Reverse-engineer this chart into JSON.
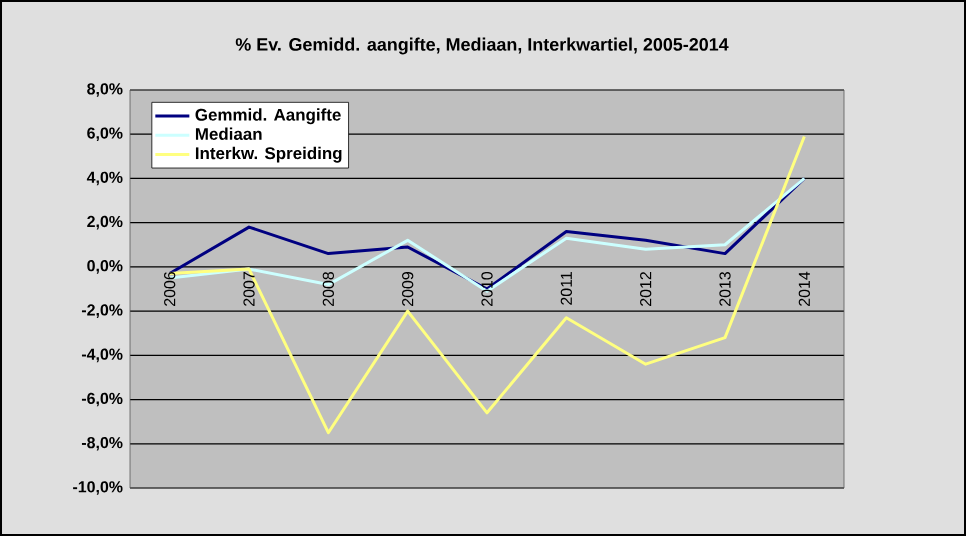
{
  "chart_data": {
    "type": "line",
    "title": "% Ev. Gemidd. aangifte, Mediaan, Interkwartiel, 2005-2014",
    "categories": [
      "2006",
      "2007",
      "2008",
      "2009",
      "2010",
      "2011",
      "2012",
      "2013",
      "2014"
    ],
    "series": [
      {
        "name": "Gemmid. Aangifte",
        "color": "#000080",
        "values": [
          -0.3,
          1.8,
          0.6,
          0.9,
          -1.0,
          1.6,
          1.2,
          0.6,
          4.0
        ]
      },
      {
        "name": "Mediaan",
        "color": "#ccffff",
        "values": [
          -0.5,
          -0.1,
          -0.8,
          1.2,
          -1.1,
          1.3,
          0.8,
          1.0,
          4.0
        ]
      },
      {
        "name": "Interkw. Spreiding",
        "color": "#ffff80",
        "values": [
          -0.3,
          -0.1,
          -7.5,
          -2.0,
          -6.6,
          -2.3,
          -4.4,
          -3.2,
          5.9
        ]
      }
    ],
    "ylim": [
      -10,
      8
    ],
    "yticks": [
      {
        "value": -10,
        "label": "-10,0%"
      },
      {
        "value": -8,
        "label": "-8,0%"
      },
      {
        "value": -6,
        "label": "-6,0%"
      },
      {
        "value": -4,
        "label": "-4,0%"
      },
      {
        "value": -2,
        "label": "-2,0%"
      },
      {
        "value": 0,
        "label": "0,0%"
      },
      {
        "value": 2,
        "label": "2,0%"
      },
      {
        "value": 4,
        "label": "4,0%"
      },
      {
        "value": 6,
        "label": "6,0%"
      },
      {
        "value": 8,
        "label": "8,0%"
      }
    ],
    "grid": "y",
    "legend": "top left",
    "marker": "none"
  }
}
